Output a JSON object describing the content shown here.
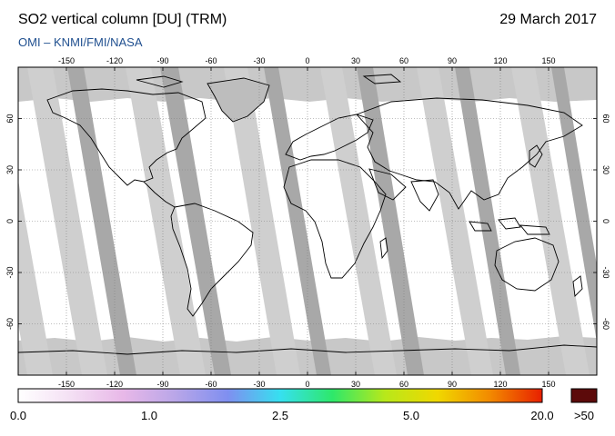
{
  "header": {
    "title": "SO2 vertical column [DU] (TRM)",
    "date": "29 March 2017",
    "credit": "OMI  –  KNMI/FMI/NASA"
  },
  "map": {
    "projection": "equirectangular",
    "lon_range": [
      -180,
      180
    ],
    "lat_range": [
      -90,
      90
    ],
    "lon_ticks": [
      "-150",
      "-120",
      "-90",
      "-60",
      "-30",
      "0",
      "30",
      "60",
      "90",
      "120",
      "150"
    ],
    "lat_ticks": [
      "60",
      "30",
      "0",
      "-30",
      "-60"
    ],
    "grid": true,
    "colors": {
      "no_data": "#c8c8c8",
      "swath_overlap": "#a6a6a6",
      "background": "#ffffff",
      "coastline": "#000000"
    }
  },
  "colorbar": {
    "labels": [
      "0.0",
      "1.0",
      "2.5",
      "5.0",
      "20.0"
    ],
    "overflow_label": ">50",
    "overflow_color": "#5c0a0a",
    "gradient": [
      "#ffffff",
      "#f4e0f4",
      "#e8b8e8",
      "#b9a6e8",
      "#7f8ff0",
      "#36e0f0",
      "#2ee86a",
      "#b8e81a",
      "#f0d800",
      "#f28a00",
      "#e82000"
    ]
  }
}
